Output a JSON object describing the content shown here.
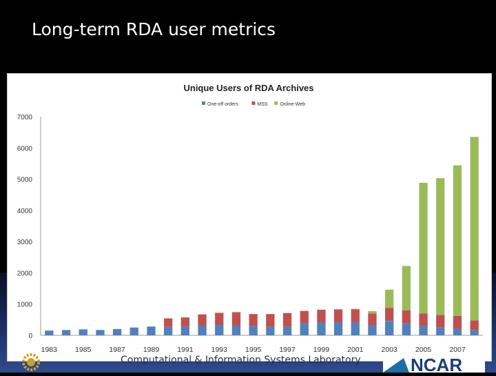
{
  "slide": {
    "title": "Long-term RDA user metrics",
    "footer_text": "Computational & Information Systems Laboratory",
    "footer_logo_right": "NCAR"
  },
  "colors": {
    "one_off": "#4f81bd",
    "mss": "#c0504d",
    "online_web": "#9bbb59",
    "background": "#000000"
  },
  "icons": [
    "gear-logo-icon",
    "ncar-logo"
  ],
  "chart_data": {
    "type": "bar",
    "stacked": true,
    "title": "Unique Users of RDA Archives",
    "legend_position": "top",
    "grid": false,
    "xlabel": "",
    "ylabel": "",
    "ylim": [
      0,
      7000
    ],
    "yticks": [
      0,
      1000,
      2000,
      3000,
      4000,
      5000,
      6000,
      7000
    ],
    "xtick_labels": [
      "1983",
      "1985",
      "1987",
      "1989",
      "1991",
      "1993",
      "1995",
      "1997",
      "1999",
      "2001",
      "2003",
      "2005",
      "2007"
    ],
    "categories": [
      "1983",
      "1984",
      "1985",
      "1986",
      "1987",
      "1988",
      "1989",
      "1990",
      "1991",
      "1992",
      "1993",
      "1994",
      "1995",
      "1996",
      "1997",
      "1998",
      "1999",
      "2000",
      "2001",
      "2002",
      "2003",
      "2004",
      "2005",
      "2006",
      "2007",
      "2008"
    ],
    "series": [
      {
        "name": "One-off orders",
        "values": [
          150,
          170,
          190,
          170,
          200,
          250,
          280,
          270,
          280,
          320,
          330,
          310,
          300,
          270,
          270,
          390,
          410,
          420,
          410,
          320,
          460,
          380,
          300,
          250,
          200,
          160
        ]
      },
      {
        "name": "MSS",
        "values": [
          0,
          0,
          0,
          0,
          0,
          0,
          0,
          270,
          290,
          350,
          390,
          430,
          380,
          410,
          440,
          390,
          410,
          410,
          420,
          380,
          420,
          420,
          400,
          400,
          420,
          320
        ]
      },
      {
        "name": "Online-Web",
        "values": [
          0,
          0,
          0,
          0,
          0,
          0,
          0,
          0,
          0,
          0,
          0,
          0,
          0,
          0,
          0,
          0,
          0,
          0,
          20,
          70,
          580,
          1420,
          4180,
          4380,
          4820,
          5870
        ]
      }
    ]
  }
}
